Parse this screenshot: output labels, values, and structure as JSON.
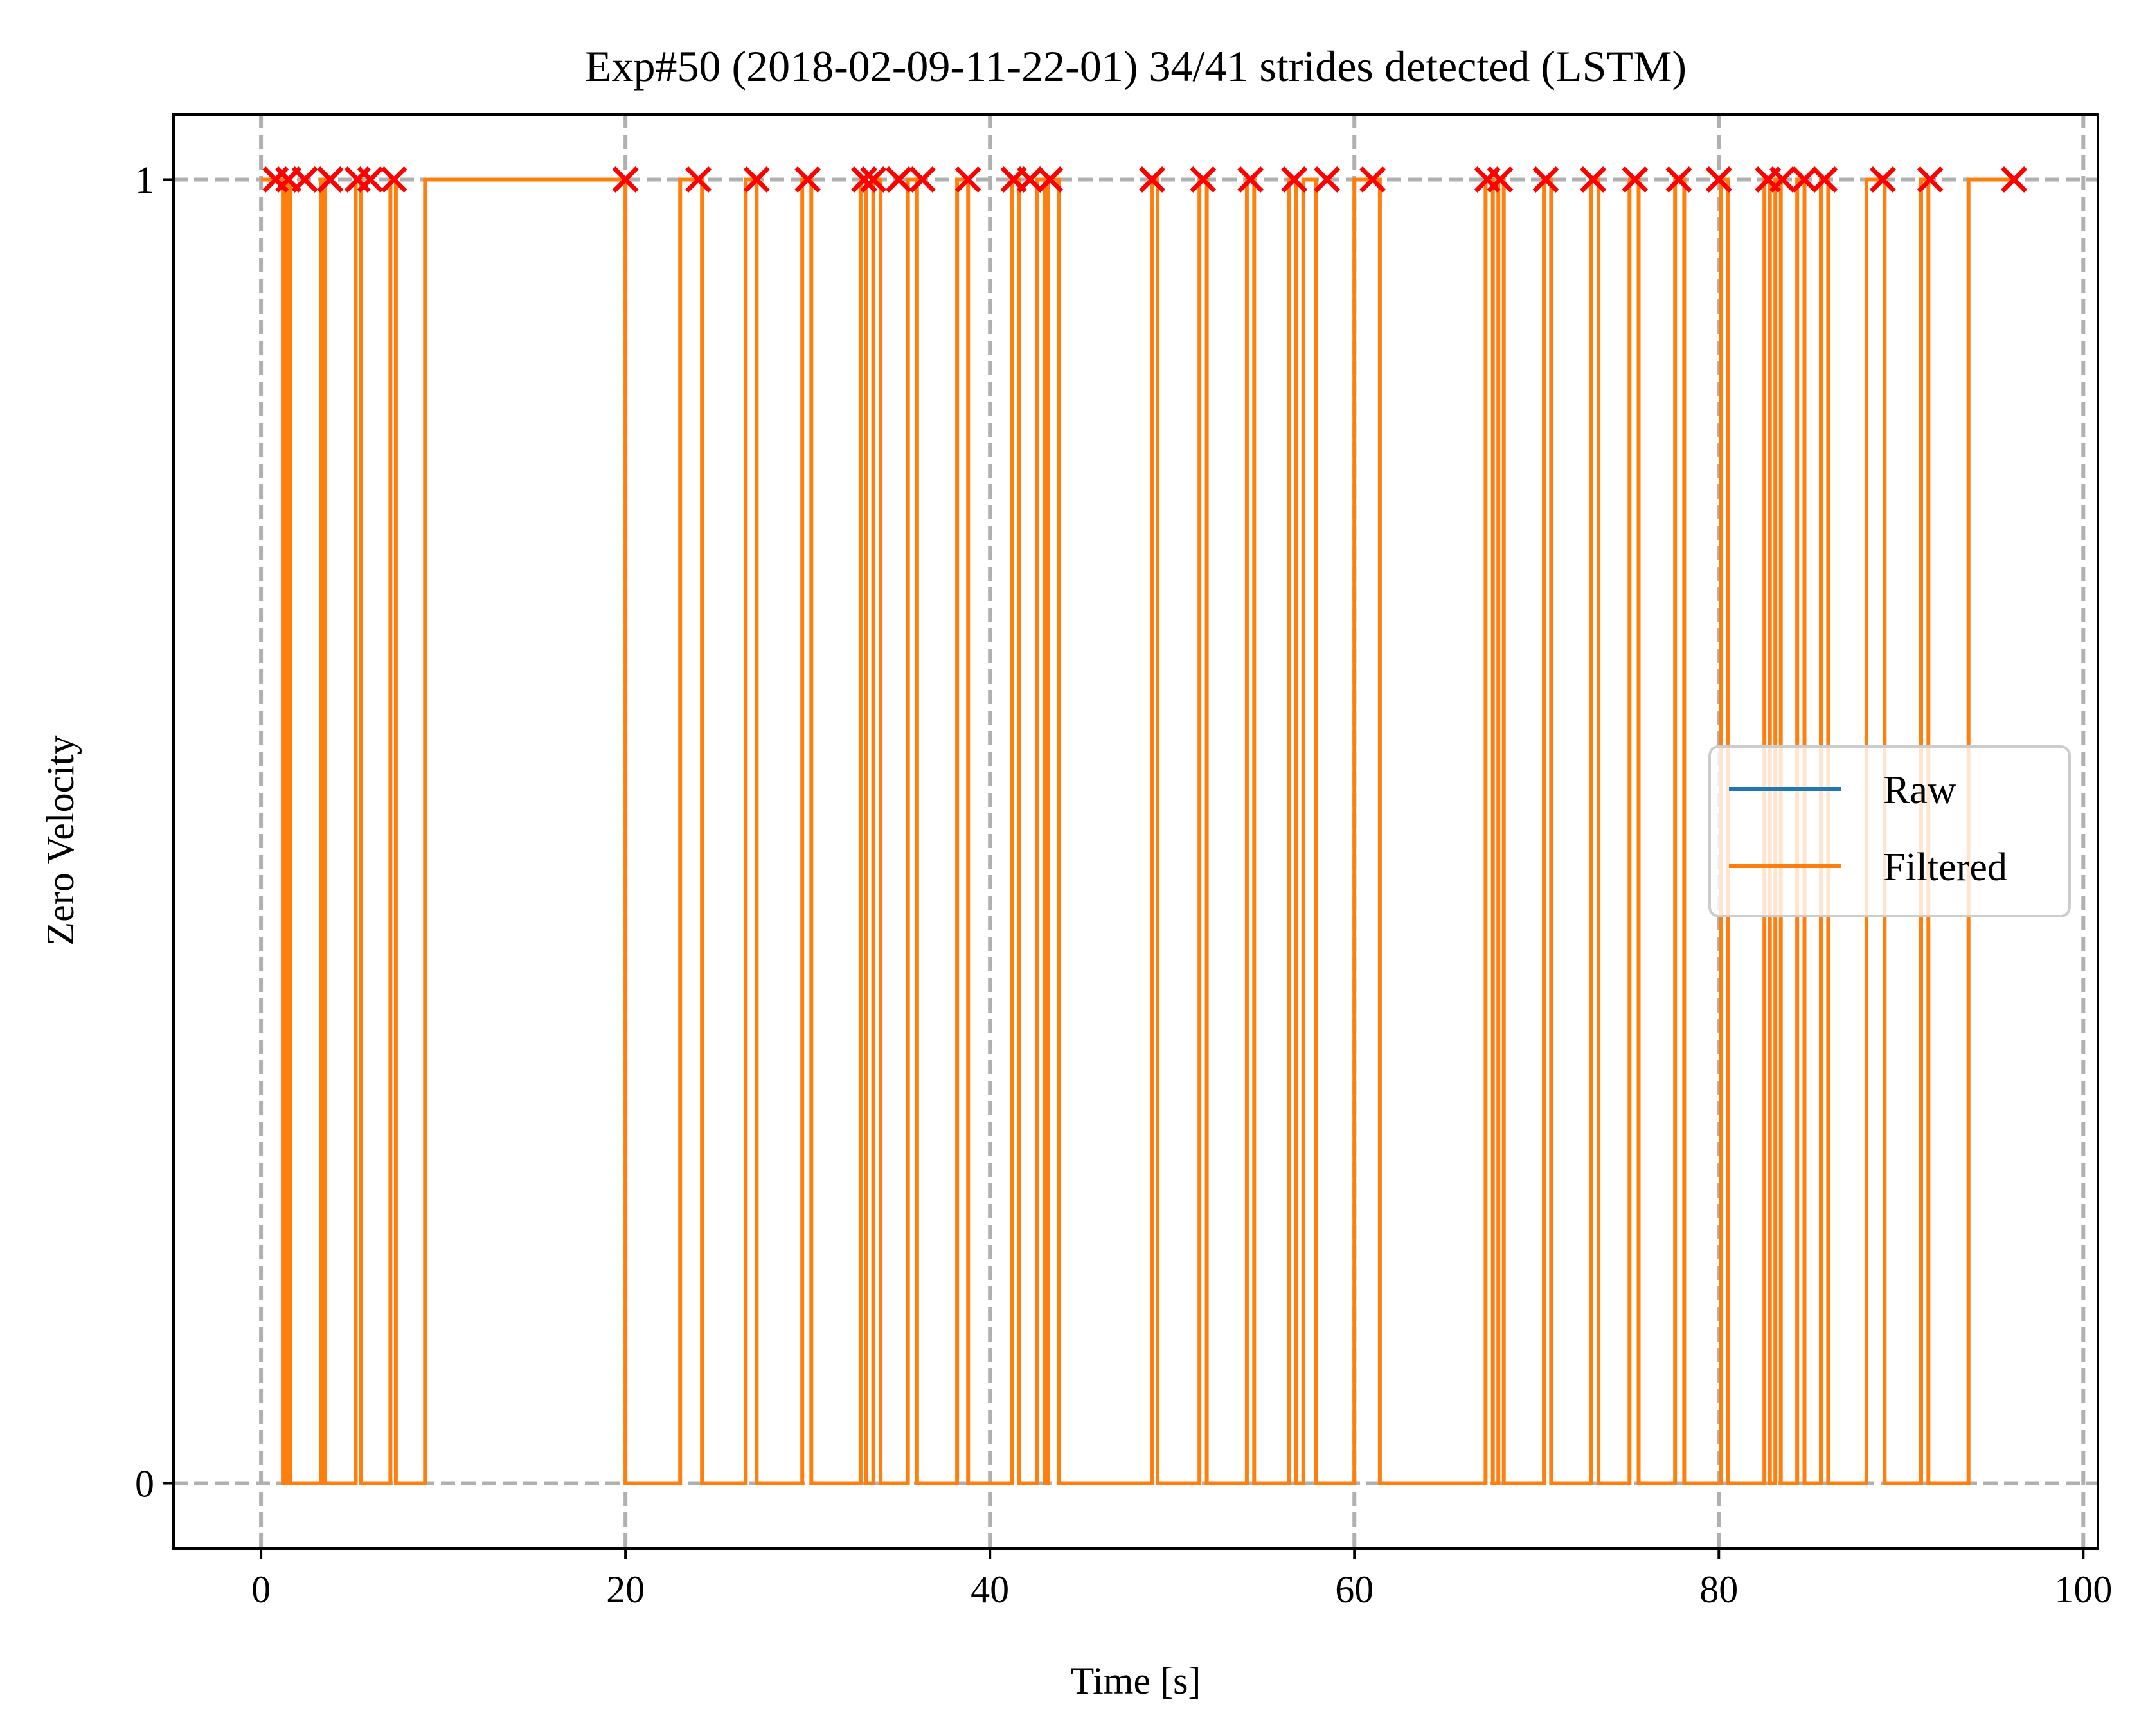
{
  "chart_data": {
    "type": "line",
    "title": "Exp#50 (2018-02-09-11-22-01) 34/41 strides detected (LSTM)",
    "xlabel": "Time [s]",
    "ylabel": "Zero Velocity",
    "xlim": [
      -4.8,
      100.8
    ],
    "ylim": [
      -0.05,
      1.05
    ],
    "xticks": [
      0,
      20,
      40,
      60,
      80,
      100
    ],
    "xtick_labels": [
      "0",
      "20",
      "40",
      "60",
      "80",
      "100"
    ],
    "yticks": [
      0,
      1
    ],
    "ytick_labels": [
      "0",
      "1"
    ],
    "grid": true,
    "legend_position": "center-right",
    "colors": {
      "raw": "#1f77b4",
      "filtered": "#ff7f0e",
      "markers": "#ff0000",
      "grid": "#b0b0b0"
    },
    "series": [
      {
        "name": "Raw",
        "step_segments": []
      },
      {
        "name": "Filtered",
        "step_segments": [
          [
            0.0,
            1.2,
            1
          ],
          [
            1.2,
            1.4,
            0
          ],
          [
            1.4,
            1.6,
            1
          ],
          [
            1.6,
            3.3,
            0
          ],
          [
            3.3,
            3.5,
            1
          ],
          [
            3.5,
            5.2,
            0
          ],
          [
            5.2,
            5.5,
            1
          ],
          [
            5.5,
            7.1,
            0
          ],
          [
            7.1,
            7.4,
            1
          ],
          [
            7.4,
            9.0,
            0
          ],
          [
            9.0,
            20.0,
            1
          ],
          [
            20.0,
            23.0,
            0
          ],
          [
            23.0,
            24.2,
            1
          ],
          [
            24.2,
            26.6,
            0
          ],
          [
            26.6,
            27.2,
            1
          ],
          [
            27.2,
            29.7,
            0
          ],
          [
            29.7,
            30.2,
            1
          ],
          [
            30.2,
            32.9,
            0
          ],
          [
            32.9,
            33.2,
            1
          ],
          [
            33.2,
            33.6,
            0
          ],
          [
            33.6,
            34.0,
            1
          ],
          [
            34.0,
            35.5,
            0
          ],
          [
            35.5,
            36.0,
            1
          ],
          [
            36.0,
            38.2,
            0
          ],
          [
            38.2,
            38.8,
            1
          ],
          [
            38.8,
            41.2,
            0
          ],
          [
            41.2,
            41.6,
            1
          ],
          [
            41.6,
            42.6,
            0
          ],
          [
            42.6,
            43.0,
            1
          ],
          [
            43.0,
            43.2,
            0
          ],
          [
            43.2,
            43.8,
            1
          ],
          [
            43.8,
            48.9,
            0
          ],
          [
            48.9,
            49.2,
            1
          ],
          [
            49.2,
            51.5,
            0
          ],
          [
            51.5,
            51.9,
            1
          ],
          [
            51.9,
            54.1,
            0
          ],
          [
            54.1,
            54.5,
            1
          ],
          [
            54.5,
            56.4,
            0
          ],
          [
            56.4,
            56.8,
            1
          ],
          [
            56.8,
            57.2,
            0
          ],
          [
            57.2,
            57.9,
            1
          ],
          [
            57.9,
            60.0,
            0
          ],
          [
            60.0,
            61.4,
            1
          ],
          [
            61.4,
            67.2,
            0
          ],
          [
            67.2,
            67.6,
            1
          ],
          [
            67.6,
            67.9,
            0
          ],
          [
            67.9,
            68.2,
            1
          ],
          [
            68.2,
            70.4,
            0
          ],
          [
            70.4,
            70.8,
            1
          ],
          [
            70.8,
            73.0,
            0
          ],
          [
            73.0,
            73.4,
            1
          ],
          [
            73.4,
            75.1,
            0
          ],
          [
            75.1,
            75.6,
            1
          ],
          [
            75.6,
            77.6,
            0
          ],
          [
            77.6,
            78.1,
            1
          ],
          [
            78.1,
            80.1,
            0
          ],
          [
            80.1,
            80.5,
            1
          ],
          [
            80.5,
            82.5,
            0
          ],
          [
            82.5,
            82.8,
            1
          ],
          [
            82.8,
            83.1,
            0
          ],
          [
            83.1,
            83.4,
            1
          ],
          [
            83.4,
            84.3,
            0
          ],
          [
            84.3,
            84.7,
            1
          ],
          [
            84.7,
            85.6,
            0
          ],
          [
            85.6,
            86.0,
            1
          ],
          [
            86.0,
            88.1,
            0
          ],
          [
            88.1,
            89.1,
            1
          ],
          [
            89.1,
            91.1,
            0
          ],
          [
            91.1,
            91.5,
            1
          ],
          [
            91.5,
            93.7,
            0
          ],
          [
            93.7,
            96.2,
            1
          ]
        ]
      }
    ],
    "markers": {
      "label": "",
      "y": 1,
      "x": [
        0.8,
        1.5,
        2.4,
        3.8,
        5.3,
        6.0,
        7.3,
        20.0,
        24.0,
        27.2,
        30.0,
        33.1,
        33.6,
        35.0,
        36.3,
        38.8,
        41.3,
        42.2,
        43.3,
        48.9,
        51.7,
        54.3,
        56.7,
        58.5,
        61.0,
        67.3,
        68.0,
        70.5,
        73.1,
        75.4,
        77.8,
        80.0,
        82.7,
        83.5,
        84.7,
        85.8,
        89.0,
        91.6,
        96.2
      ]
    }
  }
}
